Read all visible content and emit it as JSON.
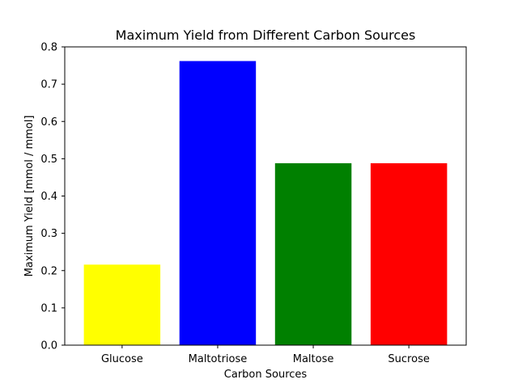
{
  "chart_data": {
    "type": "bar",
    "title": "Maximum Yield from Different Carbon Sources",
    "xlabel": "Carbon Sources",
    "ylabel": "Maximum Yield [mmol / mmol]",
    "categories": [
      "Glucose",
      "Maltotriose",
      "Maltose",
      "Sucrose"
    ],
    "values": [
      0.216,
      0.762,
      0.488,
      0.488
    ],
    "colors": [
      "#ffff00",
      "#0000ff",
      "#008000",
      "#ff0000"
    ],
    "ylim": [
      0,
      0.8
    ],
    "yticks": [
      "0.0",
      "0.1",
      "0.2",
      "0.3",
      "0.4",
      "0.5",
      "0.6",
      "0.7",
      "0.8"
    ],
    "grid": false,
    "legend": "none"
  }
}
